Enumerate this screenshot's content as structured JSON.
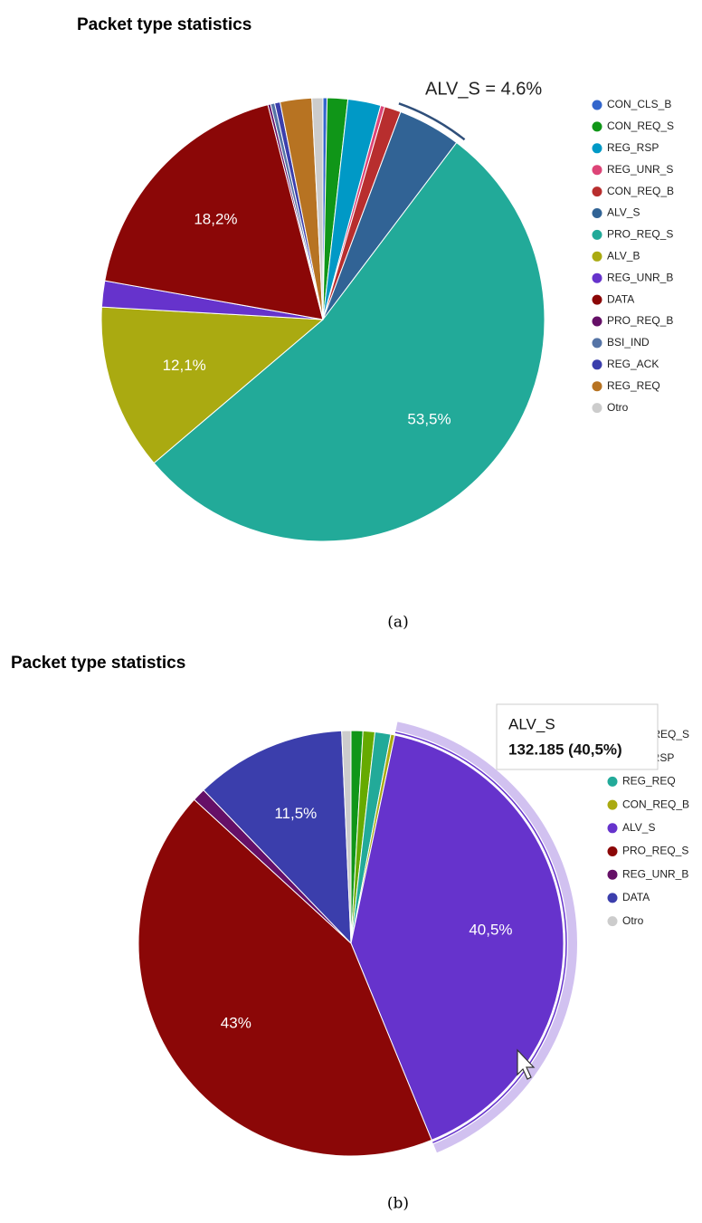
{
  "chart_data": [
    {
      "type": "pie",
      "title": "Packet type statistics",
      "caption": "(a)",
      "categories": [
        "CON_CLS_B",
        "CON_REQ_S",
        "REG_RSP",
        "REG_UNR_S",
        "CON_REQ_B",
        "ALV_S",
        "PRO_REQ_S",
        "ALV_B",
        "REG_UNR_B",
        "DATA",
        "PRO_REQ_B",
        "BSI_IND",
        "REG_ACK",
        "REG_REQ",
        "Otro"
      ],
      "values": [
        0.3,
        1.5,
        2.4,
        0.3,
        1.2,
        4.6,
        53.5,
        12.1,
        1.9,
        18.2,
        0.2,
        0.3,
        0.4,
        2.3,
        0.8
      ],
      "value_labels": [
        null,
        null,
        null,
        null,
        null,
        null,
        "53,5%",
        "12,1%",
        null,
        "18,2%",
        null,
        null,
        null,
        null,
        null
      ],
      "colors": [
        "#3366cc",
        "#109618",
        "#0099c6",
        "#dd4477",
        "#b82e2e",
        "#316395",
        "#22aa99",
        "#aaaa11",
        "#6633cc",
        "#8b0707",
        "#651067",
        "#5574a6",
        "#3b3eac",
        "#b77322",
        "#cccccc"
      ],
      "annotation": "ALV_S = 4.6%",
      "legend": "right"
    },
    {
      "type": "pie",
      "title": "Packet type statistics",
      "caption": "(b)",
      "categories": [
        "CON_REQ_S",
        "REG_RSP",
        "REG_REQ",
        "CON_REQ_B",
        "ALV_S",
        "PRO_REQ_S",
        "REG_UNR_B",
        "DATA",
        "Otro"
      ],
      "values": [
        0.9,
        0.9,
        1.2,
        0.3,
        40.5,
        43,
        1.0,
        11.5,
        0.7
      ],
      "value_labels": [
        null,
        null,
        null,
        null,
        "40,5%",
        "43%",
        null,
        "11,5%",
        null
      ],
      "colors": [
        "#109618",
        "#66aa00",
        "#22aa99",
        "#aaaa11",
        "#6633cc",
        "#8b0707",
        "#651067",
        "#3b3eac",
        "#cccccc"
      ],
      "tooltip": {
        "title": "ALV_S",
        "text": "132.185 (40,5%)"
      },
      "legend": "right"
    }
  ]
}
